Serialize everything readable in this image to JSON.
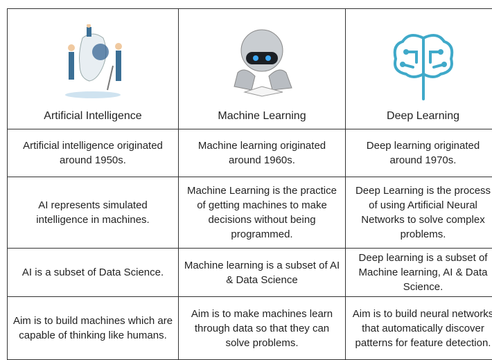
{
  "header": {
    "columns": [
      "Artificial Intelligence",
      "Machine Learning",
      "Deep Learning"
    ]
  },
  "table": {
    "rows": [
      [
        "Artificial intelligence originated around 1950s.",
        "Machine learning originated around 1960s.",
        "Deep learning originated around 1970s."
      ],
      [
        "AI represents simulated intelligence in machines.",
        "Machine Learning is the practice of getting machines to make decisions without being programmed.",
        "Deep Learning is the process of using Artificial Neural Networks to solve complex problems."
      ],
      [
        "AI is a subset of Data Science.",
        "Machine learning is a subset of AI & Data Science",
        "Deep learning is a subset of Machine learning, AI & Data Science."
      ],
      [
        "Aim is to build machines which are capable of thinking like humans.",
        "Aim is to make machines learn through data so that they can solve problems.",
        "Aim is to build neural networks that automatically discover patterns for feature detection."
      ]
    ]
  }
}
